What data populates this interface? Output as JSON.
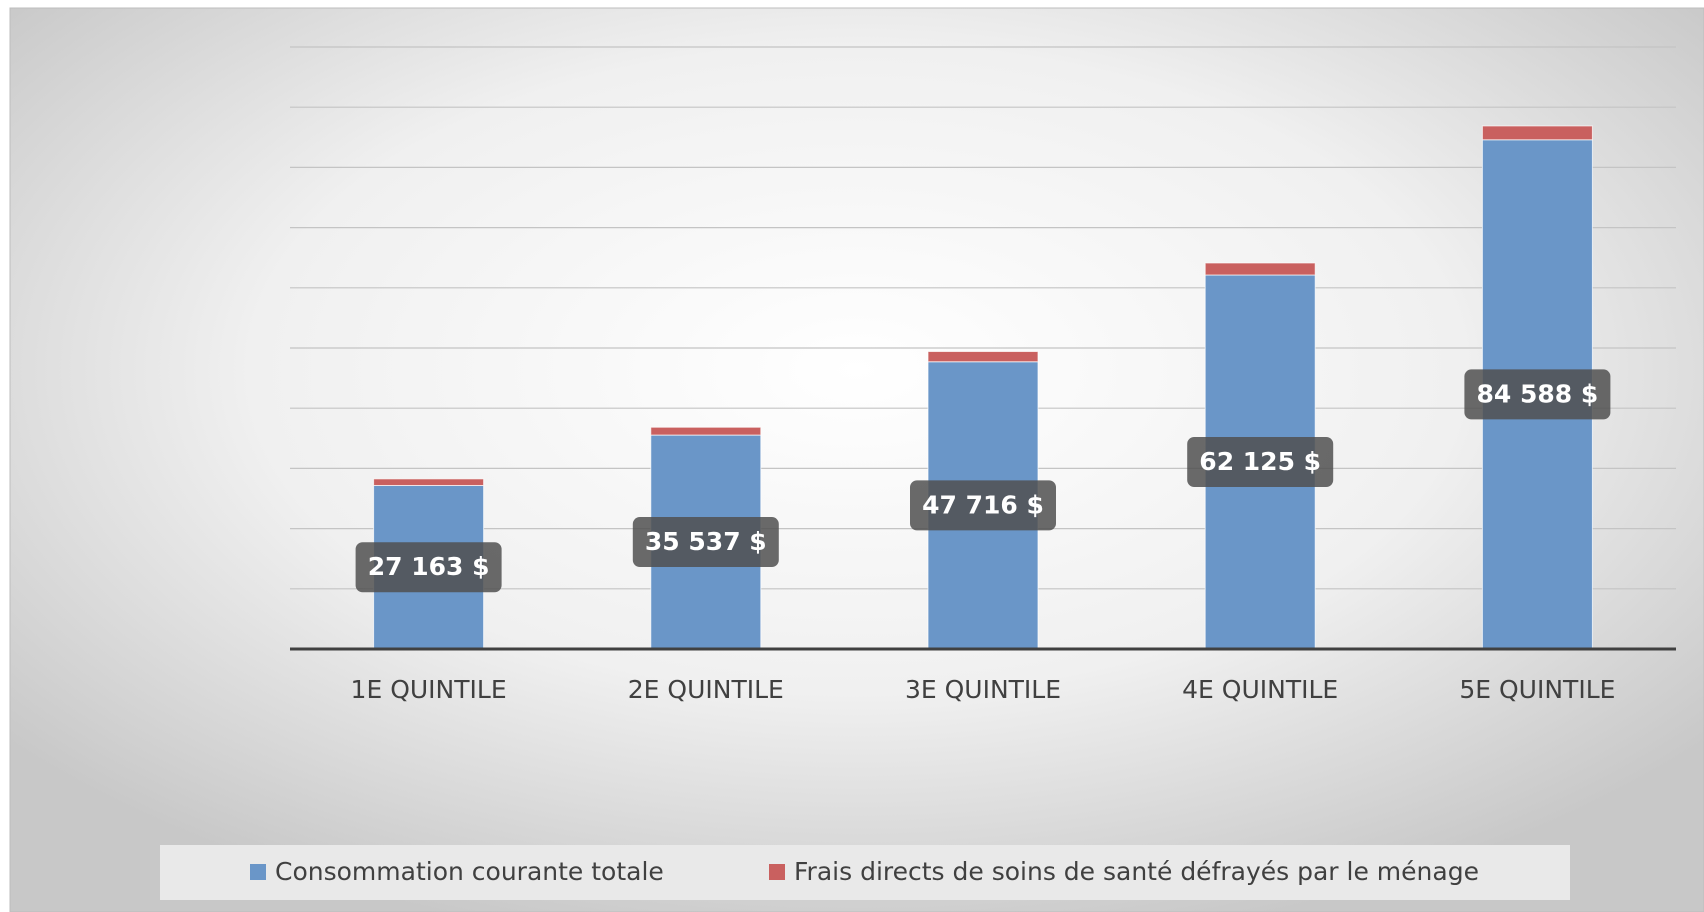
{
  "chart_data": {
    "type": "stacked_bar",
    "categories": [
      "1E QUINTILE",
      "2E QUINTILE",
      "3E QUINTILE",
      "4E QUINTILE",
      "5E QUINTILE"
    ],
    "series": [
      {
        "name": "Consommation courante totale",
        "color": "#6a96c8",
        "values": [
          27163,
          35537,
          47716,
          62125,
          84588
        ],
        "value_labels": [
          "27 163  $",
          "35 537  $",
          "47 716  $",
          "62 125  $",
          "84 588  $"
        ]
      },
      {
        "name": "Frais directs de soins de santé défrayés par le ménage",
        "color": "#c9605f",
        "values": [
          1100,
          1300,
          1700,
          2000,
          2300
        ]
      }
    ],
    "ylim": [
      0,
      100000
    ],
    "yticks": [
      0,
      10000,
      20000,
      30000,
      40000,
      50000,
      60000,
      70000,
      80000,
      90000,
      100000
    ],
    "grid": true,
    "legend": "bottom"
  }
}
